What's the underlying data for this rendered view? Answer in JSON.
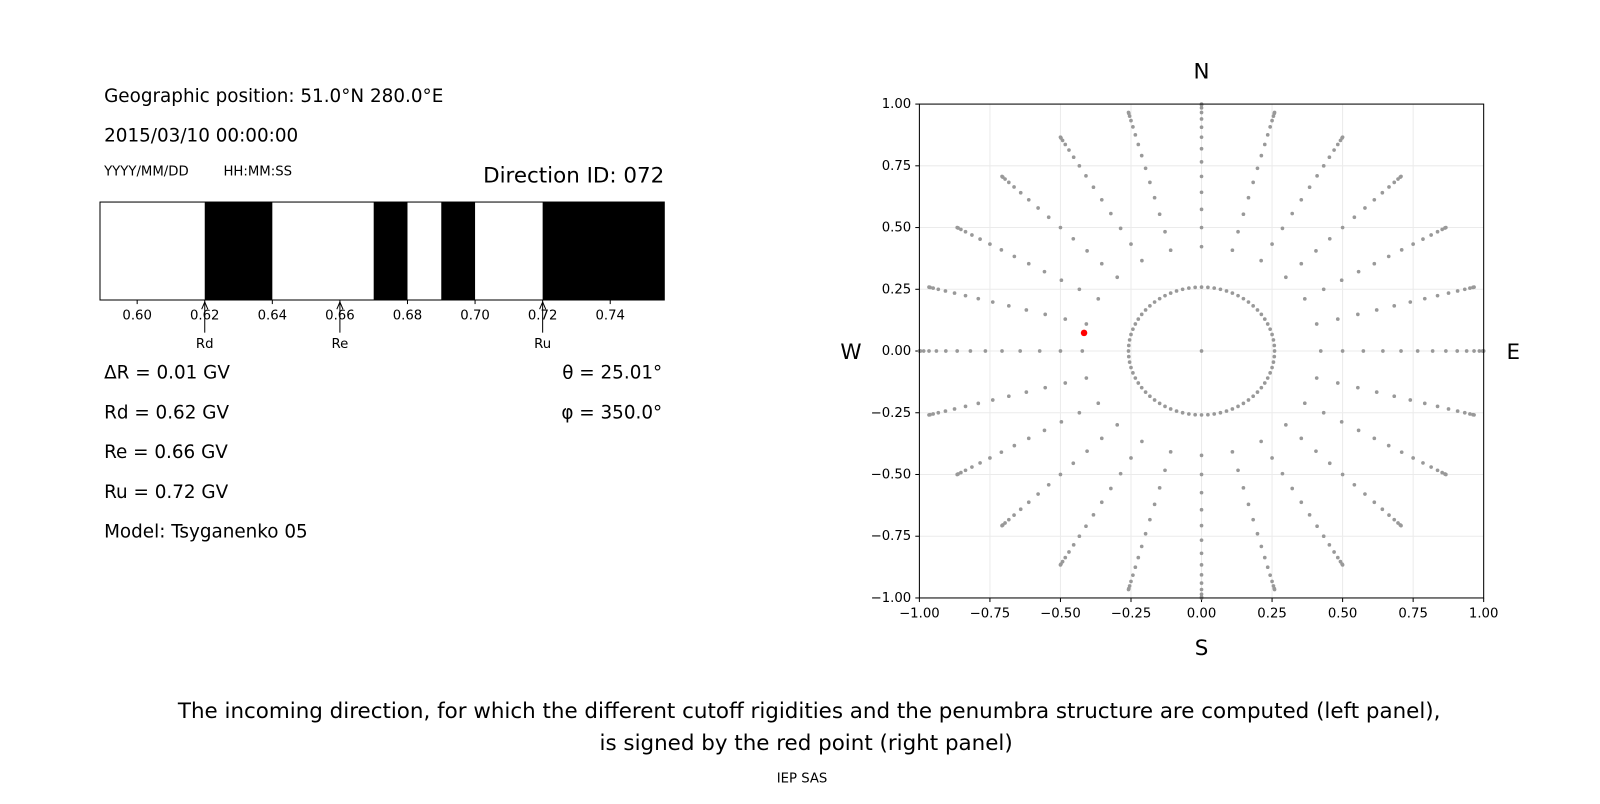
{
  "header": {
    "position": "Geographic position: 51.0°N 280.0°E",
    "datetime": "2015/03/10 00:00:00",
    "date_format": "YYYY/MM/DD",
    "time_format": "HH:MM:SS",
    "direction_id": "Direction ID: 072"
  },
  "info": {
    "delta_r": "ΔR = 0.01 GV",
    "rd": "Rd = 0.62 GV",
    "re": "Re = 0.66 GV",
    "ru": "Ru = 0.72 GV",
    "model": "Model: Tsyganenko 05",
    "theta": "θ = 25.01°",
    "phi": "φ = 350.0°"
  },
  "chart_data": [
    {
      "type": "penumbra",
      "xlim": [
        0.589,
        0.756
      ],
      "xticks": [
        {
          "value": 0.6,
          "label": "0.60"
        },
        {
          "value": 0.62,
          "label": "0.62"
        },
        {
          "value": 0.64,
          "label": "0.64"
        },
        {
          "value": 0.66,
          "label": "0.66"
        },
        {
          "value": 0.68,
          "label": "0.68"
        },
        {
          "value": 0.7,
          "label": "0.70"
        },
        {
          "value": 0.72,
          "label": "0.72"
        },
        {
          "value": 0.74,
          "label": "0.74"
        }
      ],
      "bands": [
        [
          0.62,
          0.64
        ],
        [
          0.67,
          0.68
        ],
        [
          0.69,
          0.7
        ],
        [
          0.72,
          0.756
        ]
      ],
      "band_color": "#000000",
      "markers": [
        {
          "label": "Rd",
          "value": 0.62
        },
        {
          "label": "Re",
          "value": 0.66
        },
        {
          "label": "Ru",
          "value": 0.72
        }
      ]
    },
    {
      "type": "polar-scatter",
      "xlim": [
        -1,
        1
      ],
      "ylim": [
        -1,
        1
      ],
      "grid": true,
      "color": "#999999",
      "xticks": [
        {
          "value": -1,
          "label": "−1.00"
        },
        {
          "value": -0.75,
          "label": "−0.75"
        },
        {
          "value": -0.5,
          "label": "−0.50"
        },
        {
          "value": -0.25,
          "label": "−0.25"
        },
        {
          "value": 0,
          "label": "0.00"
        },
        {
          "value": 0.25,
          "label": "0.25"
        },
        {
          "value": 0.5,
          "label": "0.50"
        },
        {
          "value": 0.75,
          "label": "0.75"
        },
        {
          "value": 1,
          "label": "1.00"
        }
      ],
      "yticks": [
        {
          "value": -1,
          "label": "−1.00"
        },
        {
          "value": -0.75,
          "label": "−0.75"
        },
        {
          "value": -0.5,
          "label": "−0.50"
        },
        {
          "value": -0.25,
          "label": "−0.25"
        },
        {
          "value": 0,
          "label": "0.00"
        },
        {
          "value": 0.25,
          "label": "0.25"
        },
        {
          "value": 0.5,
          "label": "0.50"
        },
        {
          "value": 0.75,
          "label": "0.75"
        },
        {
          "value": 1,
          "label": "1.00"
        }
      ],
      "rays": {
        "zenith": [
          25,
          30,
          35,
          40,
          45,
          50,
          55,
          60,
          65,
          70,
          75,
          80,
          85,
          90
        ],
        "azimuth": [
          0,
          15,
          30,
          45,
          60,
          75,
          90,
          105,
          120,
          135,
          150,
          165,
          180,
          195,
          210,
          225,
          240,
          255,
          270,
          285,
          300,
          315,
          330,
          345
        ]
      },
      "ring": {
        "zenith": 15,
        "azimuth": [
          0,
          5,
          10,
          15,
          20,
          25,
          30,
          35,
          40,
          45,
          50,
          55,
          60,
          65,
          70,
          75,
          80,
          85,
          90,
          95,
          100,
          105,
          110,
          115,
          120,
          125,
          130,
          135,
          140,
          145,
          150,
          155,
          160,
          165,
          170,
          175,
          180,
          185,
          190,
          195,
          200,
          205,
          210,
          215,
          220,
          225,
          230,
          235,
          240,
          245,
          250,
          255,
          260,
          265,
          270,
          275,
          280,
          285,
          290,
          295,
          300,
          305,
          310,
          315,
          320,
          325,
          330,
          335,
          340,
          345,
          350,
          355
        ]
      },
      "center": {
        "zenith": 0,
        "azimuth": 0
      },
      "selected": {
        "zenith": 25.01,
        "azimuth": 350.0,
        "color": "#ff0000"
      },
      "compass": {
        "north": "N",
        "south": "S",
        "west": "W",
        "east": "E"
      }
    }
  ],
  "caption": [
    "The incoming direction, for which the different cutoff rigidities and the penumbra structure are computed (left panel),",
    "is signed by the red point (right panel)"
  ],
  "footer": "IEP SAS"
}
